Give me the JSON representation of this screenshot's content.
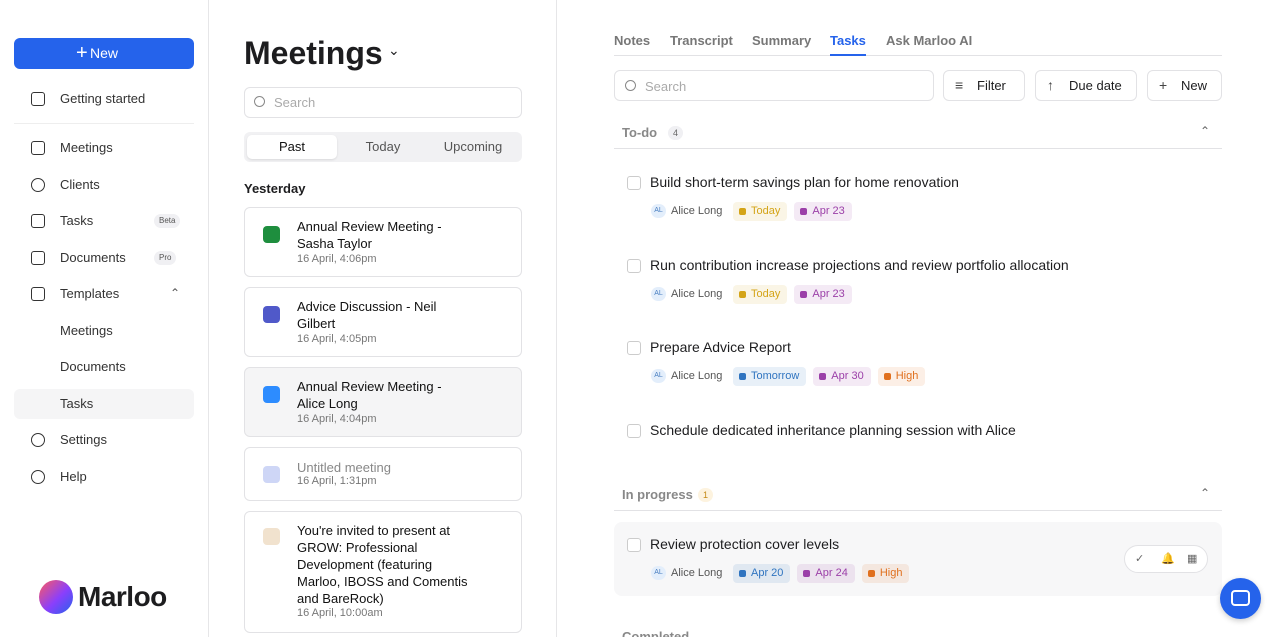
{
  "sidebar": {
    "new_button": "New",
    "nav": [
      {
        "label": "Getting started"
      },
      {
        "label": "Meetings"
      },
      {
        "label": "Clients"
      },
      {
        "label": "Tasks",
        "badge": "Beta"
      },
      {
        "label": "Documents",
        "badge": "Pro"
      },
      {
        "label": "Templates"
      }
    ],
    "templates": [
      "Meetings",
      "Documents",
      "Tasks"
    ],
    "footer": [
      "Settings",
      "Help"
    ],
    "brand": "Marloo"
  },
  "meetings": {
    "title": "Meetings",
    "search": "Search",
    "tabs": [
      "Past",
      "Today",
      "Upcoming"
    ],
    "group": "Yesterday",
    "items": [
      {
        "title": "Annual Review Meeting - Sasha Taylor",
        "date": "16 April, 4:06pm",
        "color": "#1e8e3e"
      },
      {
        "title": "Advice Discussion - Neil Gilbert",
        "date": "16 April, 4:05pm",
        "color": "#5059c9"
      },
      {
        "title": "Annual Review Meeting - Alice Long",
        "date": "16 April, 4:04pm",
        "color": "#2d8cff"
      },
      {
        "title": "Untitled meeting",
        "date": "16 April, 1:31pm",
        "color": "#3b5bdb"
      },
      {
        "title": "You're invited to present at GROW: Professional Development (featuring Marloo, IBOSS and Comentis and BareRock)",
        "date": "16 April, 10:00am",
        "color": "#c98a3c"
      }
    ]
  },
  "tasks": {
    "tabs": [
      "Notes",
      "Transcript",
      "Summary",
      "Tasks",
      "Ask Marloo AI"
    ],
    "search": "Search",
    "buttons": [
      "Filter",
      "Due date",
      "New"
    ],
    "sections": [
      {
        "name": "To-do",
        "count": 4,
        "tasks": [
          {
            "title": "Build short-term savings plan for home renovation",
            "initials": "AL",
            "assignee": "Alice Long",
            "tags": [
              {
                "text": "Today",
                "color": "#d4a417"
              },
              {
                "text": "Apr 23",
                "color": "#9b3fa8"
              }
            ]
          },
          {
            "title": "Run contribution increase projections and review portfolio allocation",
            "initials": "AL",
            "assignee": "Alice Long",
            "tags": [
              {
                "text": "Today",
                "color": "#d4a417"
              },
              {
                "text": "Apr 23",
                "color": "#9b3fa8"
              }
            ]
          },
          {
            "title": "Prepare Advice Report",
            "initials": "AL",
            "assignee": "Alice Long",
            "tags": [
              {
                "text": "Tomorrow",
                "color": "#2f74c0"
              },
              {
                "text": "Apr 30",
                "color": "#9b3fa8"
              },
              {
                "text": "High",
                "color": "#e0701e"
              }
            ]
          },
          {
            "title": "Schedule dedicated inheritance planning session with Alice"
          }
        ]
      },
      {
        "name": "In progress",
        "count": 1,
        "tasks": [
          {
            "title": "Review protection cover levels",
            "initials": "AL",
            "assignee": "Alice Long",
            "tags": [
              {
                "text": "Apr 20",
                "color": "#2f74c0"
              },
              {
                "text": "Apr 24",
                "color": "#9b3fa8"
              },
              {
                "text": "High",
                "color": "#e0701e"
              }
            ]
          }
        ]
      },
      {
        "name": "Completed"
      }
    ]
  }
}
